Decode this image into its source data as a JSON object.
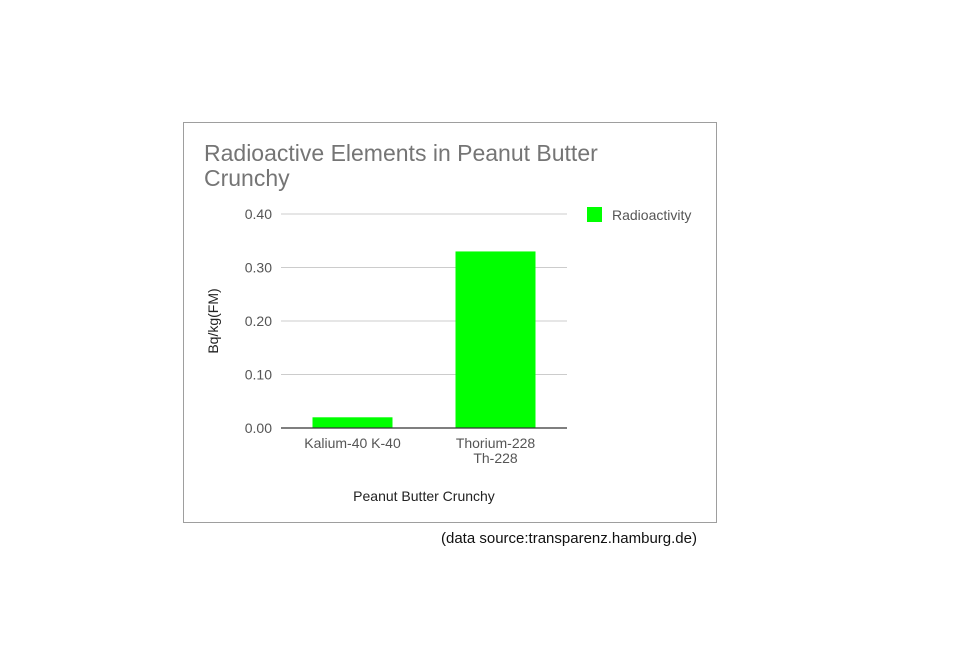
{
  "source_note": "(data source:transparenz.hamburg.de)",
  "chart_data": {
    "type": "bar",
    "title": "Radioactive Elements in  Peanut Butter Crunchy",
    "xlabel": "Peanut Butter Crunchy",
    "ylabel": "Bq/kg(FM)",
    "categories": [
      [
        "Kalium-40 K-40"
      ],
      [
        "Thorium-228",
        "Th-228"
      ]
    ],
    "series": [
      {
        "name": "Radioactivity",
        "values": [
          0.02,
          0.33
        ]
      }
    ],
    "yticks": [
      "0.00",
      "0.10",
      "0.20",
      "0.30",
      "0.40"
    ],
    "ylim": [
      0,
      0.4
    ],
    "grid": true,
    "legend": "right",
    "colors": {
      "bar": "#00ff00",
      "grid": "#cccccc",
      "axis": "#333333",
      "text": "#555555"
    }
  }
}
